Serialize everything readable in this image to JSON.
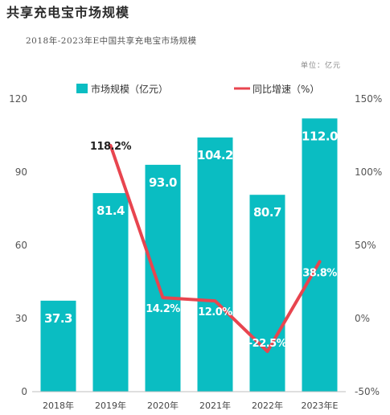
{
  "chart_data": {
    "type": "bar",
    "title": "共享充电宝市场规模",
    "subtitle": "2018年-2023年E中国共享充电宝市场规模",
    "unit_note": "单位：亿元",
    "categories": [
      "2018年",
      "2019年",
      "2020年",
      "2021年",
      "2022年",
      "2023年E"
    ],
    "series": [
      {
        "name": "市场规模（亿元）",
        "type": "bar",
        "axis": "left",
        "color": "#0ABDC2",
        "values": [
          37.3,
          81.4,
          93.0,
          104.2,
          80.7,
          112.0
        ],
        "labels": [
          "37.3",
          "81.4",
          "93.0",
          "104.2",
          "80.7",
          "112.0"
        ]
      },
      {
        "name": "同比增速（%）",
        "type": "line",
        "axis": "right",
        "color": "#E8454F",
        "values": [
          null,
          118.2,
          14.2,
          12.0,
          -22.5,
          38.8
        ],
        "labels": [
          "",
          "118.2%",
          "14.2%",
          "12.0%",
          "-22.5%",
          "38.8%"
        ]
      }
    ],
    "left_axis": {
      "ylim": [
        0,
        120
      ],
      "ticks": [
        0,
        30,
        60,
        90,
        120
      ],
      "tick_labels": [
        "0",
        "30",
        "60",
        "90",
        "120"
      ]
    },
    "right_axis": {
      "ylim": [
        -50,
        150
      ],
      "ticks": [
        -50,
        0,
        50,
        100,
        150
      ],
      "tick_labels": [
        "-50%",
        "0%",
        "50%",
        "100%",
        "150%"
      ]
    },
    "legend_position": "top",
    "grid": false
  }
}
